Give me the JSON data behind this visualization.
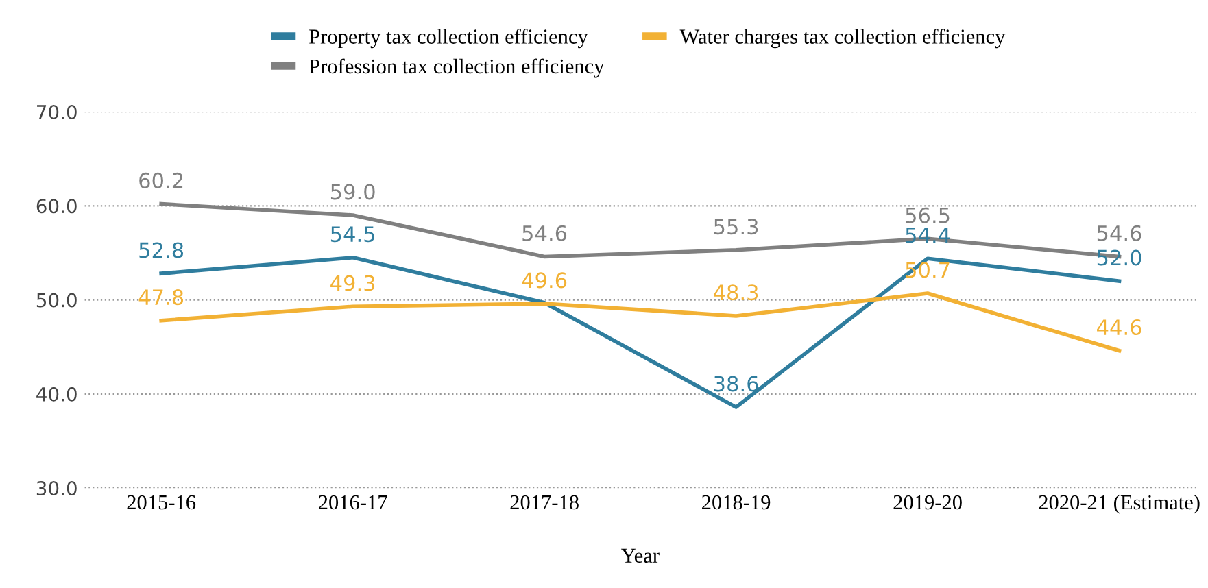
{
  "chart_data": {
    "type": "line",
    "xlabel": "Year",
    "categories": [
      "2015-16",
      "2016-17",
      "2017-18",
      "2018-19",
      "2019-20",
      "2020-21 (Estimate)"
    ],
    "series": [
      {
        "name": "Property tax collection efficiency",
        "color": "#2f7d9e",
        "values": [
          52.8,
          54.5,
          49.7,
          38.6,
          54.4,
          52.0
        ],
        "value_labels": [
          "52.8",
          "54.5",
          null,
          "38.6",
          "54.4",
          "52.0"
        ]
      },
      {
        "name": "Profession tax collection efficiency",
        "color": "#808080",
        "values": [
          60.2,
          59.0,
          54.6,
          55.3,
          56.5,
          54.6
        ],
        "value_labels": [
          "60.2",
          "59.0",
          "54.6",
          "55.3",
          "56.5",
          "54.6"
        ]
      },
      {
        "name": "Water charges tax collection efficiency",
        "color": "#f2b134",
        "values": [
          47.8,
          49.3,
          49.6,
          48.3,
          50.7,
          44.6
        ],
        "value_labels": [
          "47.8",
          "49.3",
          "49.6",
          "48.3",
          "50.7",
          "44.6"
        ]
      }
    ],
    "ylim": [
      30,
      70
    ],
    "yticks": [
      {
        "value": 30,
        "label": "30.0"
      },
      {
        "value": 40,
        "label": "40.0"
      },
      {
        "value": 50,
        "label": "50.0"
      },
      {
        "value": 60,
        "label": "60.0"
      },
      {
        "value": 70,
        "label": "70.0"
      }
    ],
    "grid": "y",
    "legend": "top",
    "marker": "none",
    "line_style": "solid"
  }
}
